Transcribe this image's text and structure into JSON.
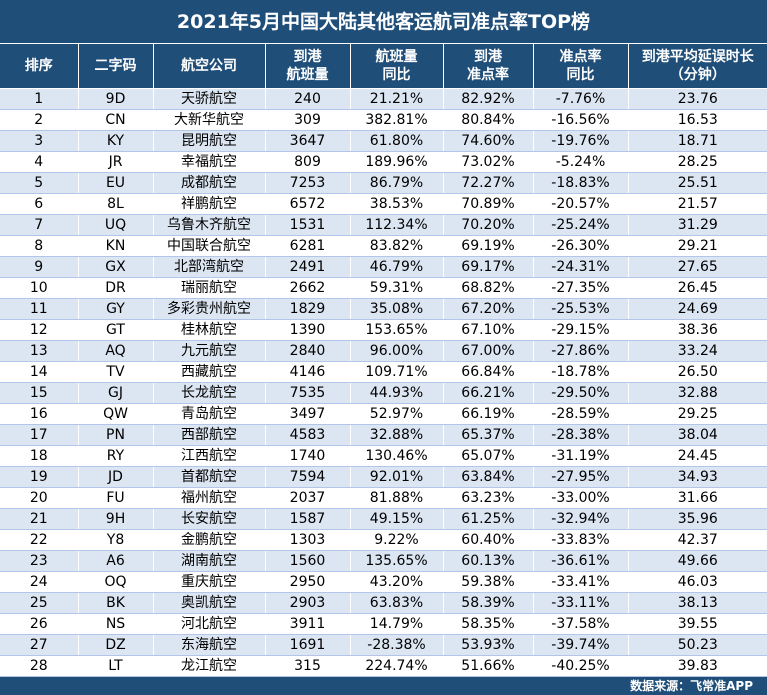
{
  "title": "2021年5月中国大陆其他客运航司准点率TOP榜",
  "headers": [
    {
      "line1": "排序",
      "line2": ""
    },
    {
      "line1": "二字码",
      "line2": ""
    },
    {
      "line1": "航空公司",
      "line2": ""
    },
    {
      "line1": "到港",
      "line2": "航班量"
    },
    {
      "line1": "航班量",
      "line2": "同比"
    },
    {
      "line1": "到港",
      "line2": "准点率"
    },
    {
      "line1": "准点率",
      "line2": "同比"
    },
    {
      "line1": "到港平均延误时长",
      "line2": "（分钟）"
    }
  ],
  "rows": [
    [
      "1",
      "9D",
      "天骄航空",
      "240",
      "21.21%",
      "82.92%",
      "-7.76%",
      "23.76"
    ],
    [
      "2",
      "CN",
      "大新华航空",
      "309",
      "382.81%",
      "80.84%",
      "-16.56%",
      "16.53"
    ],
    [
      "3",
      "KY",
      "昆明航空",
      "3647",
      "61.80%",
      "74.60%",
      "-19.76%",
      "18.71"
    ],
    [
      "4",
      "JR",
      "幸福航空",
      "809",
      "189.96%",
      "73.02%",
      "-5.24%",
      "28.25"
    ],
    [
      "5",
      "EU",
      "成都航空",
      "7253",
      "86.79%",
      "72.27%",
      "-18.83%",
      "25.51"
    ],
    [
      "6",
      "8L",
      "祥鹏航空",
      "6572",
      "38.53%",
      "70.89%",
      "-20.57%",
      "21.57"
    ],
    [
      "7",
      "UQ",
      "乌鲁木齐航空",
      "1531",
      "112.34%",
      "70.20%",
      "-25.24%",
      "31.29"
    ],
    [
      "8",
      "KN",
      "中国联合航空",
      "6281",
      "83.82%",
      "69.19%",
      "-26.30%",
      "29.21"
    ],
    [
      "9",
      "GX",
      "北部湾航空",
      "2491",
      "46.79%",
      "69.17%",
      "-24.31%",
      "27.65"
    ],
    [
      "10",
      "DR",
      "瑞丽航空",
      "2662",
      "59.31%",
      "68.82%",
      "-27.35%",
      "26.45"
    ],
    [
      "11",
      "GY",
      "多彩贵州航空",
      "1829",
      "35.08%",
      "67.20%",
      "-25.53%",
      "24.69"
    ],
    [
      "12",
      "GT",
      "桂林航空",
      "1390",
      "153.65%",
      "67.10%",
      "-29.15%",
      "38.36"
    ],
    [
      "13",
      "AQ",
      "九元航空",
      "2840",
      "96.00%",
      "67.00%",
      "-27.86%",
      "33.24"
    ],
    [
      "14",
      "TV",
      "西藏航空",
      "4146",
      "109.71%",
      "66.84%",
      "-18.78%",
      "26.50"
    ],
    [
      "15",
      "GJ",
      "长龙航空",
      "7535",
      "44.93%",
      "66.21%",
      "-29.50%",
      "32.88"
    ],
    [
      "16",
      "QW",
      "青岛航空",
      "3497",
      "52.97%",
      "66.19%",
      "-28.59%",
      "29.25"
    ],
    [
      "17",
      "PN",
      "西部航空",
      "4583",
      "32.88%",
      "65.37%",
      "-28.38%",
      "38.04"
    ],
    [
      "18",
      "RY",
      "江西航空",
      "1740",
      "130.46%",
      "65.07%",
      "-31.19%",
      "24.45"
    ],
    [
      "19",
      "JD",
      "首都航空",
      "7594",
      "92.01%",
      "63.84%",
      "-27.95%",
      "34.93"
    ],
    [
      "20",
      "FU",
      "福州航空",
      "2037",
      "81.88%",
      "63.23%",
      "-33.00%",
      "31.66"
    ],
    [
      "21",
      "9H",
      "长安航空",
      "1587",
      "49.15%",
      "61.25%",
      "-32.94%",
      "35.96"
    ],
    [
      "22",
      "Y8",
      "金鹏航空",
      "1303",
      "9.22%",
      "60.40%",
      "-33.83%",
      "42.37"
    ],
    [
      "23",
      "A6",
      "湖南航空",
      "1560",
      "135.65%",
      "60.13%",
      "-36.61%",
      "49.66"
    ],
    [
      "24",
      "OQ",
      "重庆航空",
      "2950",
      "43.20%",
      "59.38%",
      "-33.41%",
      "46.03"
    ],
    [
      "25",
      "BK",
      "奥凯航空",
      "2903",
      "63.83%",
      "58.39%",
      "-33.11%",
      "38.13"
    ],
    [
      "26",
      "NS",
      "河北航空",
      "3911",
      "14.79%",
      "58.35%",
      "-37.58%",
      "39.55"
    ],
    [
      "27",
      "DZ",
      "东海航空",
      "1691",
      "-28.38%",
      "53.93%",
      "-39.74%",
      "50.23"
    ],
    [
      "28",
      "LT",
      "龙江航空",
      "315",
      "224.74%",
      "51.66%",
      "-40.25%",
      "39.83"
    ]
  ],
  "footer": "数据来源：飞常准APP",
  "colors": {
    "header_bg": "#1f4e79",
    "row_odd": "#dce6f2",
    "row_even": "#ffffff"
  }
}
